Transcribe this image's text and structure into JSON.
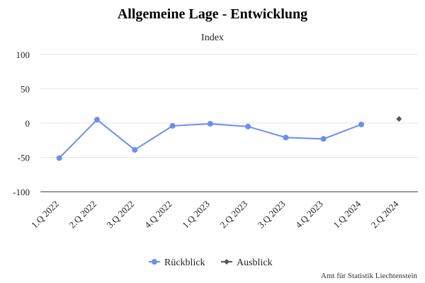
{
  "chart_data": {
    "type": "line",
    "title": "Allgemeine Lage - Entwicklung",
    "subtitle": "Index",
    "categories": [
      "1.Q 2022",
      "2.Q 2022",
      "3.Q 2022",
      "4.Q 2022",
      "1.Q 2023",
      "2.Q 2023",
      "3.Q 2023",
      "4.Q 2023",
      "1.Q 2024",
      "2.Q 2024"
    ],
    "series": [
      {
        "name": "Rückblick",
        "color": "#6b8ef5",
        "values": [
          -51,
          5,
          -39,
          -4,
          -1,
          -5,
          -21,
          -23,
          -2,
          null
        ]
      },
      {
        "name": "Ausblick",
        "color": "#555555",
        "values": [
          null,
          null,
          null,
          null,
          null,
          null,
          null,
          null,
          null,
          6
        ]
      }
    ],
    "yticks": [
      100,
      50,
      0,
      -50,
      -100
    ],
    "ylim": [
      -100,
      100
    ],
    "grid": true,
    "legend": "bottom-center",
    "credit": "Amt für Statistik Liechtenstein"
  }
}
